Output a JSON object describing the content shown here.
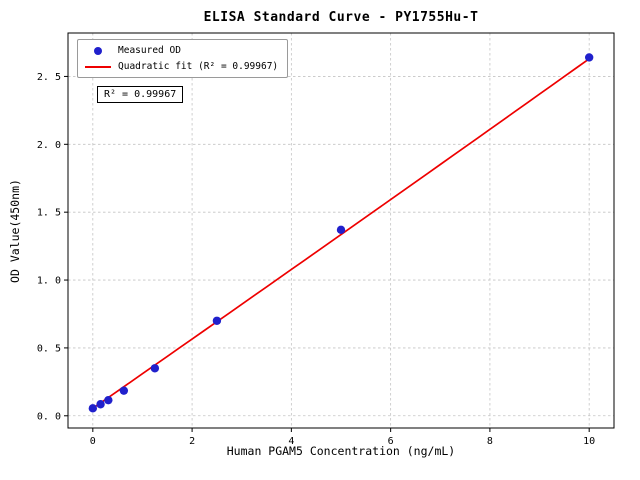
{
  "chart_data": {
    "type": "scatter",
    "title": "ELISA Standard Curve - PY1755Hu-T",
    "xlabel": "Human PGAM5 Concentration (ng/mL)",
    "ylabel": "OD Value(450nm)",
    "xlim": [
      -0.5,
      10.5
    ],
    "ylim": [
      -0.09,
      2.82
    ],
    "x_ticks": [
      0,
      2,
      4,
      6,
      8,
      10
    ],
    "x_tick_labels": [
      "0",
      "2",
      "4",
      "6",
      "8",
      "10"
    ],
    "y_ticks": [
      0.0,
      0.5,
      1.0,
      1.5,
      2.0,
      2.5
    ],
    "y_tick_labels": [
      "0. 0",
      "0. 5",
      "1. 0",
      "1. 5",
      "2. 0",
      "2. 5"
    ],
    "grid": true,
    "legend_position": "upper-left",
    "annotation": "R² = 0.99967",
    "series": [
      {
        "name": "Measured OD",
        "type": "scatter",
        "color": "#2020cc",
        "x": [
          0,
          0.156,
          0.3125,
          0.625,
          1.25,
          2.5,
          5,
          10
        ],
        "y": [
          0.055,
          0.085,
          0.115,
          0.185,
          0.35,
          0.7,
          1.37,
          2.64
        ]
      },
      {
        "name": "Quadratic fit (R² = 0.99967)",
        "type": "line",
        "color": "#ee0000",
        "fit_coefficients": [
          0.055,
          0.2545,
          0.0003
        ],
        "fit_x_range": [
          0,
          10
        ]
      }
    ]
  }
}
